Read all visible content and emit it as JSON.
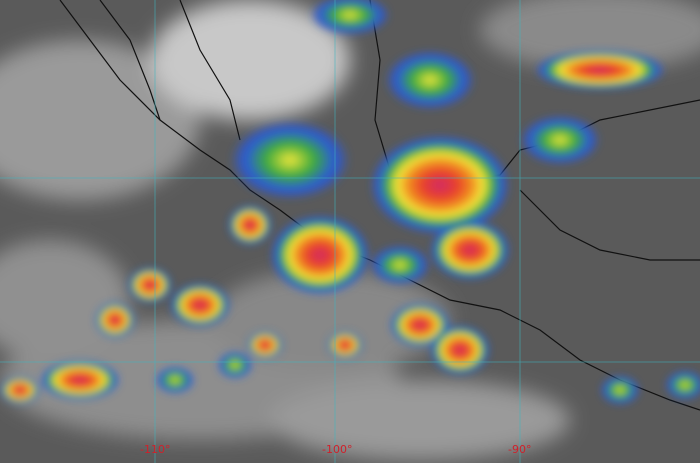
{
  "image": {
    "type": "infrared satellite image",
    "colors": {
      "background": "#5a5a5a",
      "grid": "#3fb6c0",
      "label": "#d0202a"
    },
    "longitude_labels": [
      "-110°",
      "-100°",
      "-90°"
    ]
  }
}
